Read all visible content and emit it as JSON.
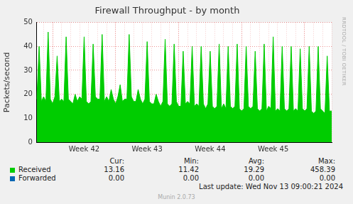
{
  "chart_data": {
    "type": "area",
    "title": "Firewall Throughput - by month",
    "y_label": "Packets/second",
    "categories": [
      null,
      null,
      null,
      null,
      null,
      null,
      null,
      null,
      null,
      null,
      null,
      null,
      null,
      null,
      null,
      null,
      null,
      null,
      null,
      null,
      null,
      "Week 42",
      null,
      null,
      null,
      null,
      null,
      null,
      null,
      null,
      null,
      null,
      null,
      null,
      null,
      null,
      null,
      null,
      null,
      null,
      null,
      null,
      null,
      null,
      null,
      null,
      null,
      null,
      null,
      "Week 43",
      null,
      null,
      null,
      null,
      null,
      null,
      null,
      null,
      null,
      null,
      null,
      null,
      null,
      null,
      null,
      null,
      null,
      null,
      null,
      null,
      null,
      null,
      null,
      null,
      null,
      null,
      null,
      "Week 44",
      null,
      null,
      null,
      null,
      null,
      null,
      null,
      null,
      null,
      null,
      null,
      null,
      null,
      null,
      null,
      null,
      null,
      null,
      null,
      null,
      null,
      null,
      null,
      null,
      null,
      null,
      null,
      "Week 45",
      null,
      null,
      null,
      null,
      null,
      null,
      null,
      null,
      null,
      null,
      null,
      null,
      null,
      null,
      null,
      null,
      null,
      null,
      null,
      null,
      null,
      null,
      null,
      null,
      null,
      null
    ],
    "series": [
      {
        "name": "Received",
        "color": "#00cc00",
        "stats": [
          "13.16",
          "11.42",
          "19.29",
          "458.39"
        ],
        "values": [
          18,
          40,
          17,
          19,
          17,
          46,
          18,
          16,
          19,
          36,
          17,
          18,
          17,
          44,
          18,
          17,
          16,
          20,
          17,
          19,
          18,
          44,
          17,
          16,
          17,
          41,
          19,
          18,
          18,
          45,
          17,
          19,
          17,
          22,
          18,
          16,
          19,
          24,
          17,
          18,
          18,
          45,
          19,
          17,
          17,
          22,
          18,
          16,
          18,
          42,
          17,
          16,
          16,
          20,
          17,
          15,
          17,
          43,
          16,
          15,
          16,
          41,
          17,
          15,
          15,
          38,
          16,
          17,
          16,
          40,
          15,
          16,
          15,
          40,
          16,
          14,
          16,
          38,
          15,
          14,
          15,
          41,
          14,
          16,
          14,
          40,
          15,
          14,
          15,
          41,
          14,
          13,
          14,
          40,
          15,
          14,
          15,
          38,
          14,
          13,
          14,
          41,
          13,
          15,
          14,
          44,
          13,
          14,
          13,
          40,
          14,
          13,
          14,
          40,
          13,
          14,
          13,
          39,
          14,
          13,
          14,
          40,
          13,
          12,
          13,
          40,
          14,
          13,
          12,
          36,
          13,
          13
        ]
      },
      {
        "name": "Forwarded",
        "color": "#0066b3",
        "stats": [
          "0.00",
          "0.00",
          "0.00",
          "0.00"
        ],
        "values": [
          0,
          0,
          0,
          0,
          0,
          0,
          0,
          0,
          0,
          0,
          0,
          0,
          0,
          0,
          0,
          0,
          0,
          0,
          0,
          0,
          0,
          0,
          0,
          0,
          0,
          0,
          0,
          0,
          0,
          0,
          0,
          0,
          0,
          0,
          0,
          0,
          0,
          0,
          0,
          0,
          0,
          0,
          0,
          0,
          0,
          0,
          0,
          0,
          0,
          0,
          0,
          0,
          0,
          0,
          0,
          0,
          0,
          0,
          0,
          0,
          0,
          0,
          0,
          0,
          0,
          0,
          0,
          0,
          0,
          0,
          0,
          0,
          0,
          0,
          0,
          0,
          0,
          0,
          0,
          0,
          0,
          0,
          0,
          0,
          0,
          0,
          0,
          0,
          0,
          0,
          0,
          0,
          0,
          0,
          0,
          0,
          0,
          0,
          0,
          0,
          0,
          0,
          0,
          0,
          0,
          0,
          0,
          0,
          0,
          0,
          0,
          0,
          0,
          0,
          0,
          0,
          0,
          0,
          0,
          0,
          0,
          0,
          0,
          0,
          0,
          0,
          0,
          0,
          0,
          0,
          0,
          0
        ]
      }
    ],
    "ylim": [
      0,
      50
    ],
    "yticks": [
      0,
      10,
      20,
      30,
      40,
      50
    ],
    "grid": true,
    "legend": "bottom",
    "legend_columns": [
      "Cur:",
      "Min:",
      "Avg:",
      "Max:"
    ],
    "side_text": "RRDTOOL / TOBI OETIKER",
    "footer": "Last update: Wed Nov 13 09:00:21 2024",
    "credit": "Munin 2.0.73"
  }
}
